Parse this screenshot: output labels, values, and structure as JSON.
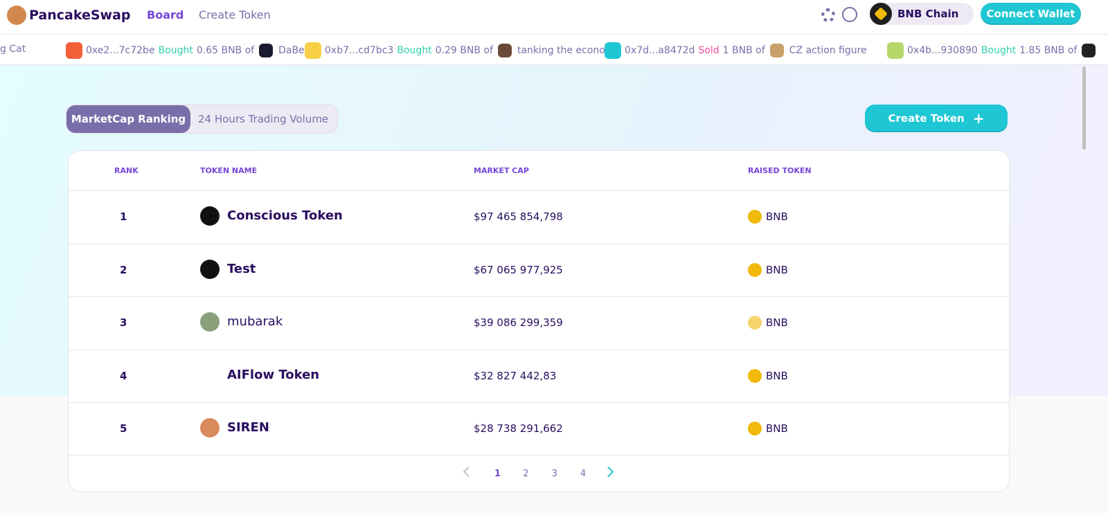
{
  "header": {
    "brand": "PancakeSwap",
    "nav": [
      "Board",
      "Create Token"
    ],
    "chain": "BNB Chain",
    "connect": "Connect Wallet"
  },
  "ticker": {
    "lead": "g Cat",
    "items": [
      {
        "address": "0xe2...7c72be",
        "action": "Bought",
        "amount": "0.65 BNB of",
        "token": "DaBe"
      },
      {
        "address": "0xb7...cd7bc3",
        "action": "Bought",
        "amount": "0.29 BNB of",
        "token": "tanking the economy"
      },
      {
        "address": "0x7d...a8472d",
        "action": "Sold",
        "amount": "1 BNB of",
        "token": "CZ action figure"
      },
      {
        "address": "0x4b...930890",
        "action": "Bought",
        "amount": "1.85 BNB of"
      }
    ]
  },
  "tabs": [
    "MarketCap Ranking",
    "24 Hours Trading Volume"
  ],
  "create_button": "Create Token",
  "table": {
    "columns": [
      "RANK",
      "TOKEN NAME",
      "MARKET CAP",
      "RAISED TOKEN"
    ],
    "rows": [
      [
        "1",
        "Conscious Token",
        "$97 465 854,798",
        "BNB"
      ],
      [
        "2",
        "Test",
        "$67 065 977,925",
        "BNB"
      ],
      [
        "3",
        "mubarak",
        "$39 086 299,359",
        "BNB"
      ],
      [
        "4",
        "AIFlow Token",
        "$32 827 442,83",
        "BNB"
      ],
      [
        "5",
        "SIREN",
        "$28 738 291,662",
        "BNB"
      ]
    ]
  },
  "pagination": [
    "1",
    "2",
    "3",
    "4"
  ]
}
